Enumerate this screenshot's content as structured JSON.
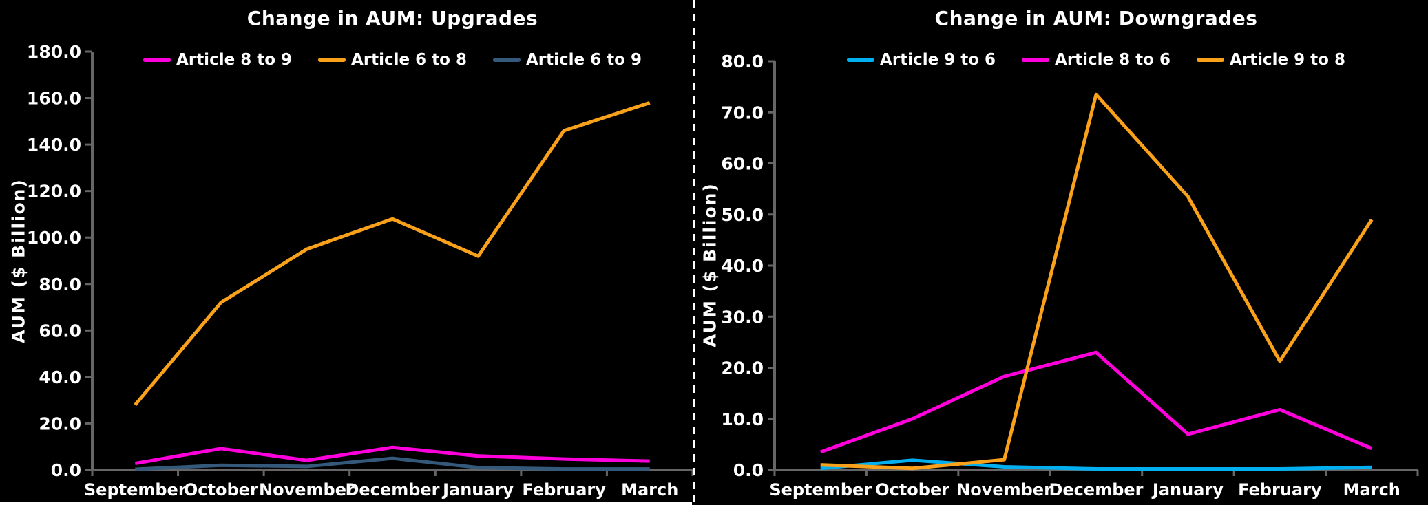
{
  "chart_data": [
    {
      "type": "line",
      "title": "Change in AUM: Upgrades",
      "ylabel": "AUM ($ Billion)",
      "xlabel": "",
      "categories": [
        "September",
        "October",
        "November",
        "December",
        "January",
        "February",
        "March"
      ],
      "ylim": [
        0,
        180
      ],
      "y_ticks": [
        0,
        20,
        40,
        60,
        80,
        100,
        120,
        140,
        160,
        180
      ],
      "y_tick_format": "one-decimal",
      "grid": false,
      "legend_position": "top",
      "series": [
        {
          "name": "Article 8 to 9",
          "color": "#FF00DC",
          "values": [
            2.8,
            9.2,
            4.1,
            9.7,
            6.0,
            4.7,
            3.8
          ]
        },
        {
          "name": "Article 6 to 8",
          "color": "#F9A11B",
          "values": [
            28.0,
            72.0,
            95.0,
            108.0,
            92.0,
            146.0,
            158.0
          ]
        },
        {
          "name": "Article 6 to 9",
          "color": "#35597B",
          "values": [
            0.3,
            2.0,
            1.5,
            5.0,
            1.0,
            0.4,
            0.4
          ]
        }
      ]
    },
    {
      "type": "line",
      "title": "Change in AUM: Downgrades",
      "ylabel": "AUM ($ Billion)",
      "xlabel": "",
      "categories": [
        "September",
        "October",
        "November",
        "December",
        "January",
        "February",
        "March"
      ],
      "ylim": [
        0,
        80
      ],
      "y_ticks": [
        0,
        10,
        20,
        30,
        40,
        50,
        60,
        70,
        80
      ],
      "y_tick_format": "one-decimal",
      "grid": false,
      "legend_position": "top",
      "series": [
        {
          "name": "Article 9 to 6",
          "color": "#00B0F0",
          "values": [
            0.3,
            1.9,
            0.6,
            0.2,
            0.2,
            0.2,
            0.5
          ]
        },
        {
          "name": "Article 8 to 6",
          "color": "#FF00DC",
          "values": [
            3.5,
            10.0,
            18.3,
            23.0,
            7.0,
            11.8,
            4.2
          ]
        },
        {
          "name": "Article 9 to 8",
          "color": "#F9A11B",
          "values": [
            1.0,
            0.3,
            2.0,
            73.5,
            53.5,
            21.3,
            49.0
          ]
        }
      ]
    }
  ],
  "style": {
    "background": "#000000",
    "axis_color": "#666666",
    "text_color": "#FFFFFF"
  }
}
